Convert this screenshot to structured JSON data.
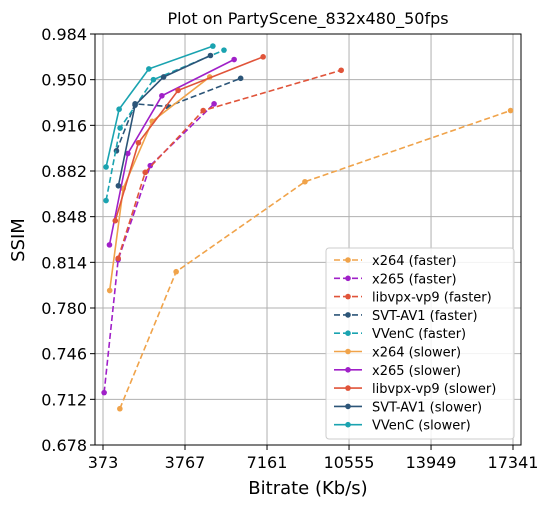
{
  "chart_data": {
    "type": "line",
    "title": "Plot on PartyScene_832x480_50fps",
    "xlabel": "Bitrate (Kb/s)",
    "ylabel": "SSIM",
    "xlim": [
      373,
      17341
    ],
    "ylim": [
      0.678,
      0.984
    ],
    "xticks": [
      373,
      3767,
      7161,
      10555,
      13949,
      17341
    ],
    "yticks": [
      0.678,
      0.712,
      0.746,
      0.78,
      0.814,
      0.848,
      0.882,
      0.916,
      0.95,
      0.984
    ],
    "grid": true,
    "legend_position": "lower-right",
    "series": [
      {
        "name": "x264 (faster)",
        "color": "#f0a34a",
        "dash": true,
        "x": [
          1070,
          3400,
          8730,
          17240
        ],
        "y": [
          0.705,
          0.807,
          0.874,
          0.927
        ]
      },
      {
        "name": "x265 (faster)",
        "color": "#a020c8",
        "dash": true,
        "x": [
          420,
          1000,
          2330,
          4970
        ],
        "y": [
          0.717,
          0.816,
          0.886,
          0.932
        ]
      },
      {
        "name": "libvpx-vp9 (faster)",
        "color": "#e0543a",
        "dash": true,
        "x": [
          1000,
          2120,
          4520,
          10230
        ],
        "y": [
          0.817,
          0.881,
          0.927,
          0.957
        ]
      },
      {
        "name": "SVT-AV1 (faster)",
        "color": "#2c5578",
        "dash": true,
        "x": [
          930,
          1700,
          3050,
          6070
        ],
        "y": [
          0.897,
          0.932,
          0.93,
          0.951
        ]
      },
      {
        "name": "VVenC (faster)",
        "color": "#1aa3b0",
        "dash": true,
        "x": [
          500,
          1080,
          2460,
          5380
        ],
        "y": [
          0.86,
          0.914,
          0.95,
          0.972
        ]
      },
      {
        "name": "x264 (slower)",
        "color": "#f0a34a",
        "dash": false,
        "x": [
          650,
          1210,
          2410,
          4790
        ],
        "y": [
          0.793,
          0.869,
          0.919,
          0.952
        ]
      },
      {
        "name": "x265 (slower)",
        "color": "#a020c8",
        "dash": false,
        "x": [
          640,
          1400,
          2810,
          5800
        ],
        "y": [
          0.827,
          0.895,
          0.938,
          0.965
        ]
      },
      {
        "name": "libvpx-vp9 (slower)",
        "color": "#e0543a",
        "dash": false,
        "x": [
          880,
          1840,
          3480,
          7000
        ],
        "y": [
          0.845,
          0.903,
          0.942,
          0.967
        ]
      },
      {
        "name": "SVT-AV1 (slower)",
        "color": "#2c5578",
        "dash": false,
        "x": [
          1010,
          1700,
          2880,
          4820
        ],
        "y": [
          0.871,
          0.931,
          0.952,
          0.968
        ]
      },
      {
        "name": "VVenC (slower)",
        "color": "#1aa3b0",
        "dash": false,
        "x": [
          500,
          1040,
          2270,
          4920
        ],
        "y": [
          0.885,
          0.928,
          0.958,
          0.975
        ]
      }
    ]
  }
}
